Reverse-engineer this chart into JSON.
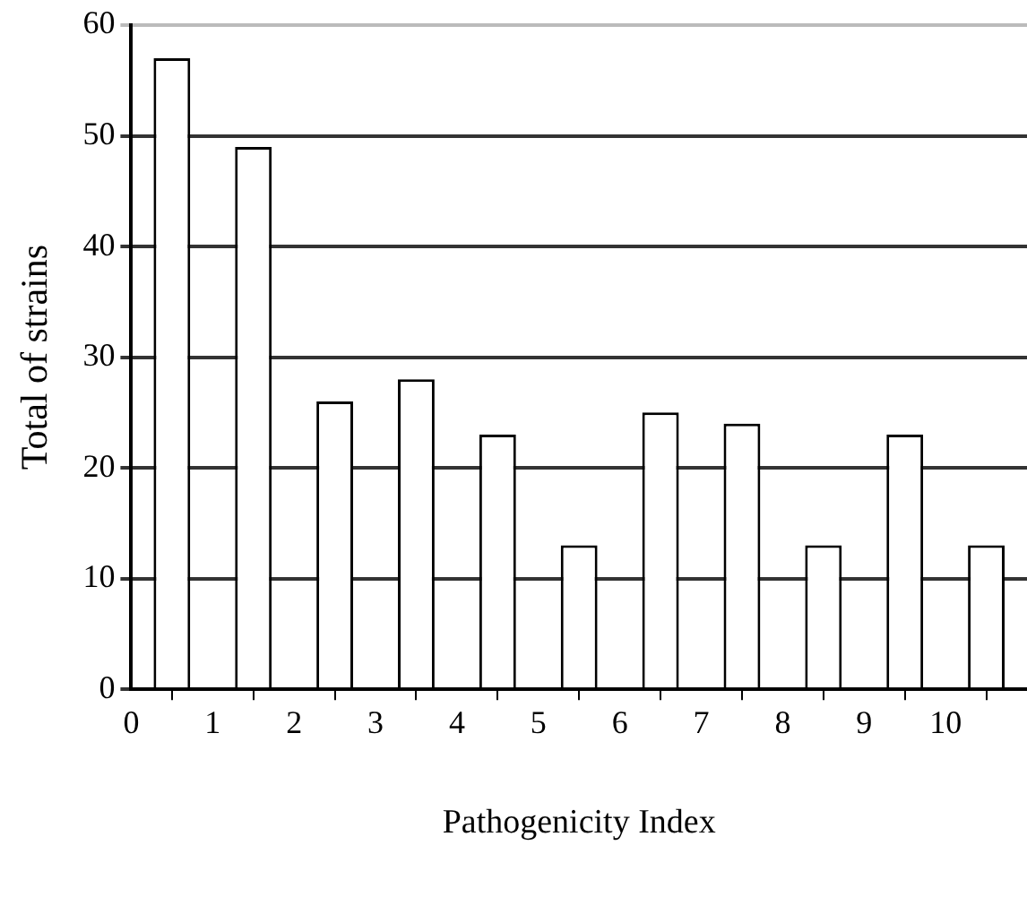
{
  "chart_data": {
    "type": "bar",
    "xlabel": "Pathogenicity Index",
    "ylabel": "Total of strains",
    "x": [
      0.5,
      1.5,
      2.5,
      3.5,
      4.5,
      5.5,
      6.5,
      7.5,
      8.5,
      9.5,
      10.5
    ],
    "values": [
      57,
      49,
      26,
      28,
      23,
      13,
      25,
      24,
      13,
      23,
      13
    ],
    "color": "#ffffff",
    "xlim": [
      0,
      11
    ],
    "xticks": [
      0,
      1,
      2,
      3,
      4,
      5,
      6,
      7,
      8,
      9,
      10
    ],
    "ylim": [
      0,
      60
    ],
    "yticks": [
      0,
      10,
      20,
      30,
      40,
      50,
      60
    ],
    "grid": "y",
    "legend": false
  }
}
